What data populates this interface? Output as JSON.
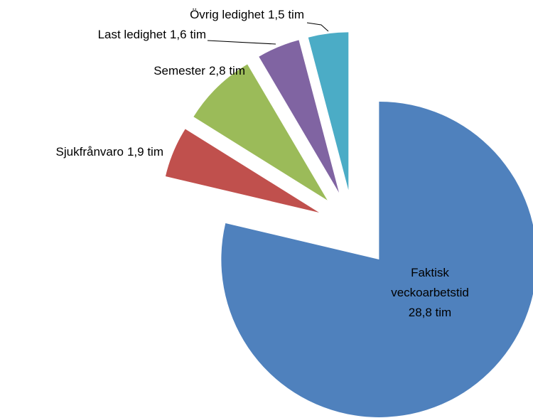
{
  "chart_data": {
    "type": "pie",
    "categories": [
      "Faktisk veckoarbetstid",
      "Sjukfrånvaro",
      "Semester",
      "Last ledighet",
      "Övrig ledighet"
    ],
    "values": [
      28.8,
      1.9,
      2.8,
      1.6,
      1.5
    ],
    "value_labels": [
      "28,8 tim",
      "1,9 tim",
      "2,8 tim",
      "1,6 tim",
      "1,5 tim"
    ],
    "colors": [
      "#4f81bd",
      "#c0504d",
      "#9bbb59",
      "#8064a2",
      "#4bacc6"
    ]
  }
}
